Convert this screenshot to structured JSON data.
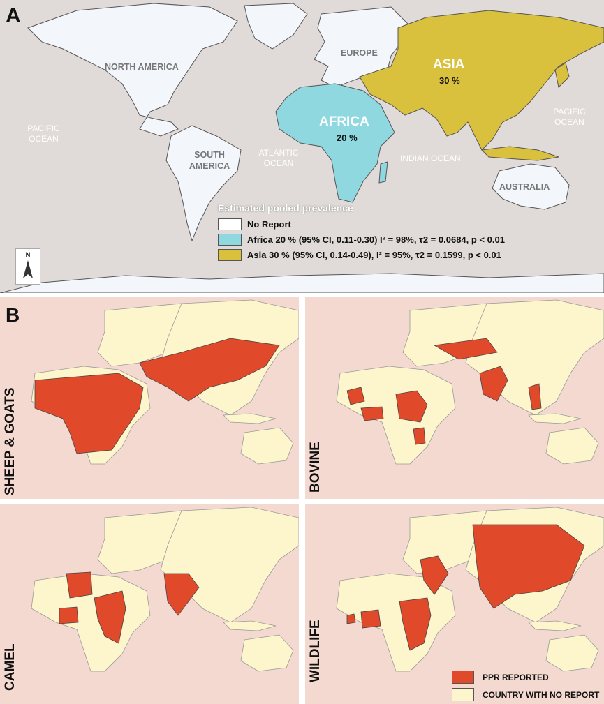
{
  "panel_a": {
    "letter": "A",
    "continents": {
      "north_america": "NORTH AMERICA",
      "south_america_1": "SOUTH",
      "south_america_2": "AMERICA",
      "europe": "EUROPE",
      "australia": "AUSTRALIA",
      "africa": "AFRICA",
      "africa_pct": "20 %",
      "asia": "ASIA",
      "asia_pct": "30 %"
    },
    "oceans": {
      "pacific_left_1": "PACIFIC",
      "pacific_left_2": "OCEAN",
      "pacific_right_1": "PACIFIC",
      "pacific_right_2": "OCEAN",
      "atlantic_1": "ATLANTIC",
      "atlantic_2": "OCEAN",
      "indian": "INDIAN OCEAN"
    },
    "north_arrow": "N",
    "legend": {
      "title": "Estimated pooled prevalence",
      "items": [
        {
          "label": "No Report",
          "color": "#ffffff"
        },
        {
          "label": "Africa 20 % (95% CI, 0.11-0.30) I² = 98%, τ2 = 0.0684, p < 0.01",
          "color": "#8fd8e0"
        },
        {
          "label": "Asia 30 % (95% CI, 0.14-0.49), I² = 95%, τ2 = 0.1599, p < 0.01",
          "color": "#d9c13e"
        }
      ]
    }
  },
  "panel_b": {
    "letter": "B",
    "maps": [
      {
        "label": "SHEEP & GOATS"
      },
      {
        "label": "BOVINE"
      },
      {
        "label": "CAMEL"
      },
      {
        "label": "WILDLIFE"
      }
    ],
    "legend": [
      {
        "label": "PPR REPORTED",
        "color": "#e04a2b"
      },
      {
        "label": "COUNTRY WITH NO REPORT",
        "color": "#fdf6cc"
      }
    ]
  },
  "colors": {
    "land_a": "#f3f6fb",
    "ocean_a": "#e0dbd8",
    "africa": "#8fd8e0",
    "asia": "#d9c13e",
    "ocean_b": "#f3d9cf",
    "land_b": "#fdf6cc",
    "reported": "#e04a2b"
  }
}
